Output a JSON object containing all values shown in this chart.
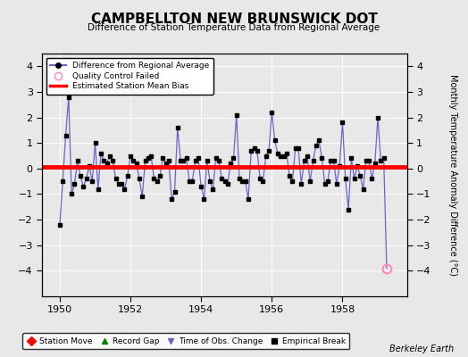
{
  "title": "CAMPBELLTON NEW BRUNSWICK DOT",
  "subtitle": "Difference of Station Temperature Data from Regional Average",
  "ylabel": "Monthly Temperature Anomaly Difference (°C)",
  "bg_color": "#e8e8e8",
  "plot_bg_color": "#e8e8e8",
  "line_color": "#6666cc",
  "bias_color": "#ff0000",
  "bias_value": 0.05,
  "xlim": [
    1949.5,
    1959.83
  ],
  "ylim": [
    -5,
    4.5
  ],
  "yticks": [
    -4,
    -3,
    -2,
    -1,
    0,
    1,
    2,
    3,
    4
  ],
  "xticks": [
    1950,
    1952,
    1954,
    1956,
    1958
  ],
  "qc_failed": [
    [
      1959.25,
      -3.9
    ]
  ],
  "data": [
    [
      1950.0,
      -2.2
    ],
    [
      1950.083,
      -0.5
    ],
    [
      1950.167,
      1.3
    ],
    [
      1950.25,
      2.8
    ],
    [
      1950.333,
      -1.0
    ],
    [
      1950.417,
      -0.6
    ],
    [
      1950.5,
      0.3
    ],
    [
      1950.583,
      -0.3
    ],
    [
      1950.667,
      -0.7
    ],
    [
      1950.75,
      -0.4
    ],
    [
      1950.833,
      0.1
    ],
    [
      1950.917,
      -0.5
    ],
    [
      1951.0,
      1.0
    ],
    [
      1951.083,
      -0.8
    ],
    [
      1951.167,
      0.6
    ],
    [
      1951.25,
      0.3
    ],
    [
      1951.333,
      0.2
    ],
    [
      1951.417,
      0.5
    ],
    [
      1951.5,
      0.3
    ],
    [
      1951.583,
      -0.4
    ],
    [
      1951.667,
      -0.6
    ],
    [
      1951.75,
      -0.6
    ],
    [
      1951.833,
      -0.8
    ],
    [
      1951.917,
      -0.3
    ],
    [
      1952.0,
      0.5
    ],
    [
      1952.083,
      0.3
    ],
    [
      1952.167,
      0.2
    ],
    [
      1952.25,
      -0.4
    ],
    [
      1952.333,
      -1.1
    ],
    [
      1952.417,
      0.3
    ],
    [
      1952.5,
      0.4
    ],
    [
      1952.583,
      0.5
    ],
    [
      1952.667,
      -0.4
    ],
    [
      1952.75,
      -0.5
    ],
    [
      1952.833,
      -0.3
    ],
    [
      1952.917,
      0.4
    ],
    [
      1953.0,
      0.2
    ],
    [
      1953.083,
      0.3
    ],
    [
      1953.167,
      -1.2
    ],
    [
      1953.25,
      -0.9
    ],
    [
      1953.333,
      1.6
    ],
    [
      1953.417,
      0.3
    ],
    [
      1953.5,
      0.3
    ],
    [
      1953.583,
      0.4
    ],
    [
      1953.667,
      -0.5
    ],
    [
      1953.75,
      -0.5
    ],
    [
      1953.833,
      0.3
    ],
    [
      1953.917,
      0.4
    ],
    [
      1954.0,
      -0.7
    ],
    [
      1954.083,
      -1.2
    ],
    [
      1954.167,
      0.3
    ],
    [
      1954.25,
      -0.5
    ],
    [
      1954.333,
      -0.8
    ],
    [
      1954.417,
      0.4
    ],
    [
      1954.5,
      0.3
    ],
    [
      1954.583,
      -0.4
    ],
    [
      1954.667,
      -0.5
    ],
    [
      1954.75,
      -0.6
    ],
    [
      1954.833,
      0.2
    ],
    [
      1954.917,
      0.4
    ],
    [
      1955.0,
      2.1
    ],
    [
      1955.083,
      -0.4
    ],
    [
      1955.167,
      -0.5
    ],
    [
      1955.25,
      -0.5
    ],
    [
      1955.333,
      -1.2
    ],
    [
      1955.417,
      0.7
    ],
    [
      1955.5,
      0.8
    ],
    [
      1955.583,
      0.7
    ],
    [
      1955.667,
      -0.4
    ],
    [
      1955.75,
      -0.5
    ],
    [
      1955.833,
      0.5
    ],
    [
      1955.917,
      0.7
    ],
    [
      1956.0,
      2.2
    ],
    [
      1956.083,
      1.1
    ],
    [
      1956.167,
      0.6
    ],
    [
      1956.25,
      0.5
    ],
    [
      1956.333,
      0.5
    ],
    [
      1956.417,
      0.6
    ],
    [
      1956.5,
      -0.3
    ],
    [
      1956.583,
      -0.5
    ],
    [
      1956.667,
      0.8
    ],
    [
      1956.75,
      0.8
    ],
    [
      1956.833,
      -0.6
    ],
    [
      1956.917,
      0.3
    ],
    [
      1957.0,
      0.5
    ],
    [
      1957.083,
      -0.5
    ],
    [
      1957.167,
      0.3
    ],
    [
      1957.25,
      0.9
    ],
    [
      1957.333,
      1.1
    ],
    [
      1957.417,
      0.4
    ],
    [
      1957.5,
      -0.6
    ],
    [
      1957.583,
      -0.5
    ],
    [
      1957.667,
      0.3
    ],
    [
      1957.75,
      0.3
    ],
    [
      1957.833,
      -0.6
    ],
    [
      1957.917,
      0.1
    ],
    [
      1958.0,
      1.8
    ],
    [
      1958.083,
      -0.4
    ],
    [
      1958.167,
      -1.6
    ],
    [
      1958.25,
      0.4
    ],
    [
      1958.333,
      -0.4
    ],
    [
      1958.417,
      0.1
    ],
    [
      1958.5,
      -0.3
    ],
    [
      1958.583,
      -0.8
    ],
    [
      1958.667,
      0.3
    ],
    [
      1958.75,
      0.3
    ],
    [
      1958.833,
      -0.4
    ],
    [
      1958.917,
      0.2
    ],
    [
      1959.0,
      2.0
    ],
    [
      1959.083,
      0.3
    ],
    [
      1959.167,
      0.4
    ],
    [
      1959.25,
      -3.9
    ]
  ]
}
